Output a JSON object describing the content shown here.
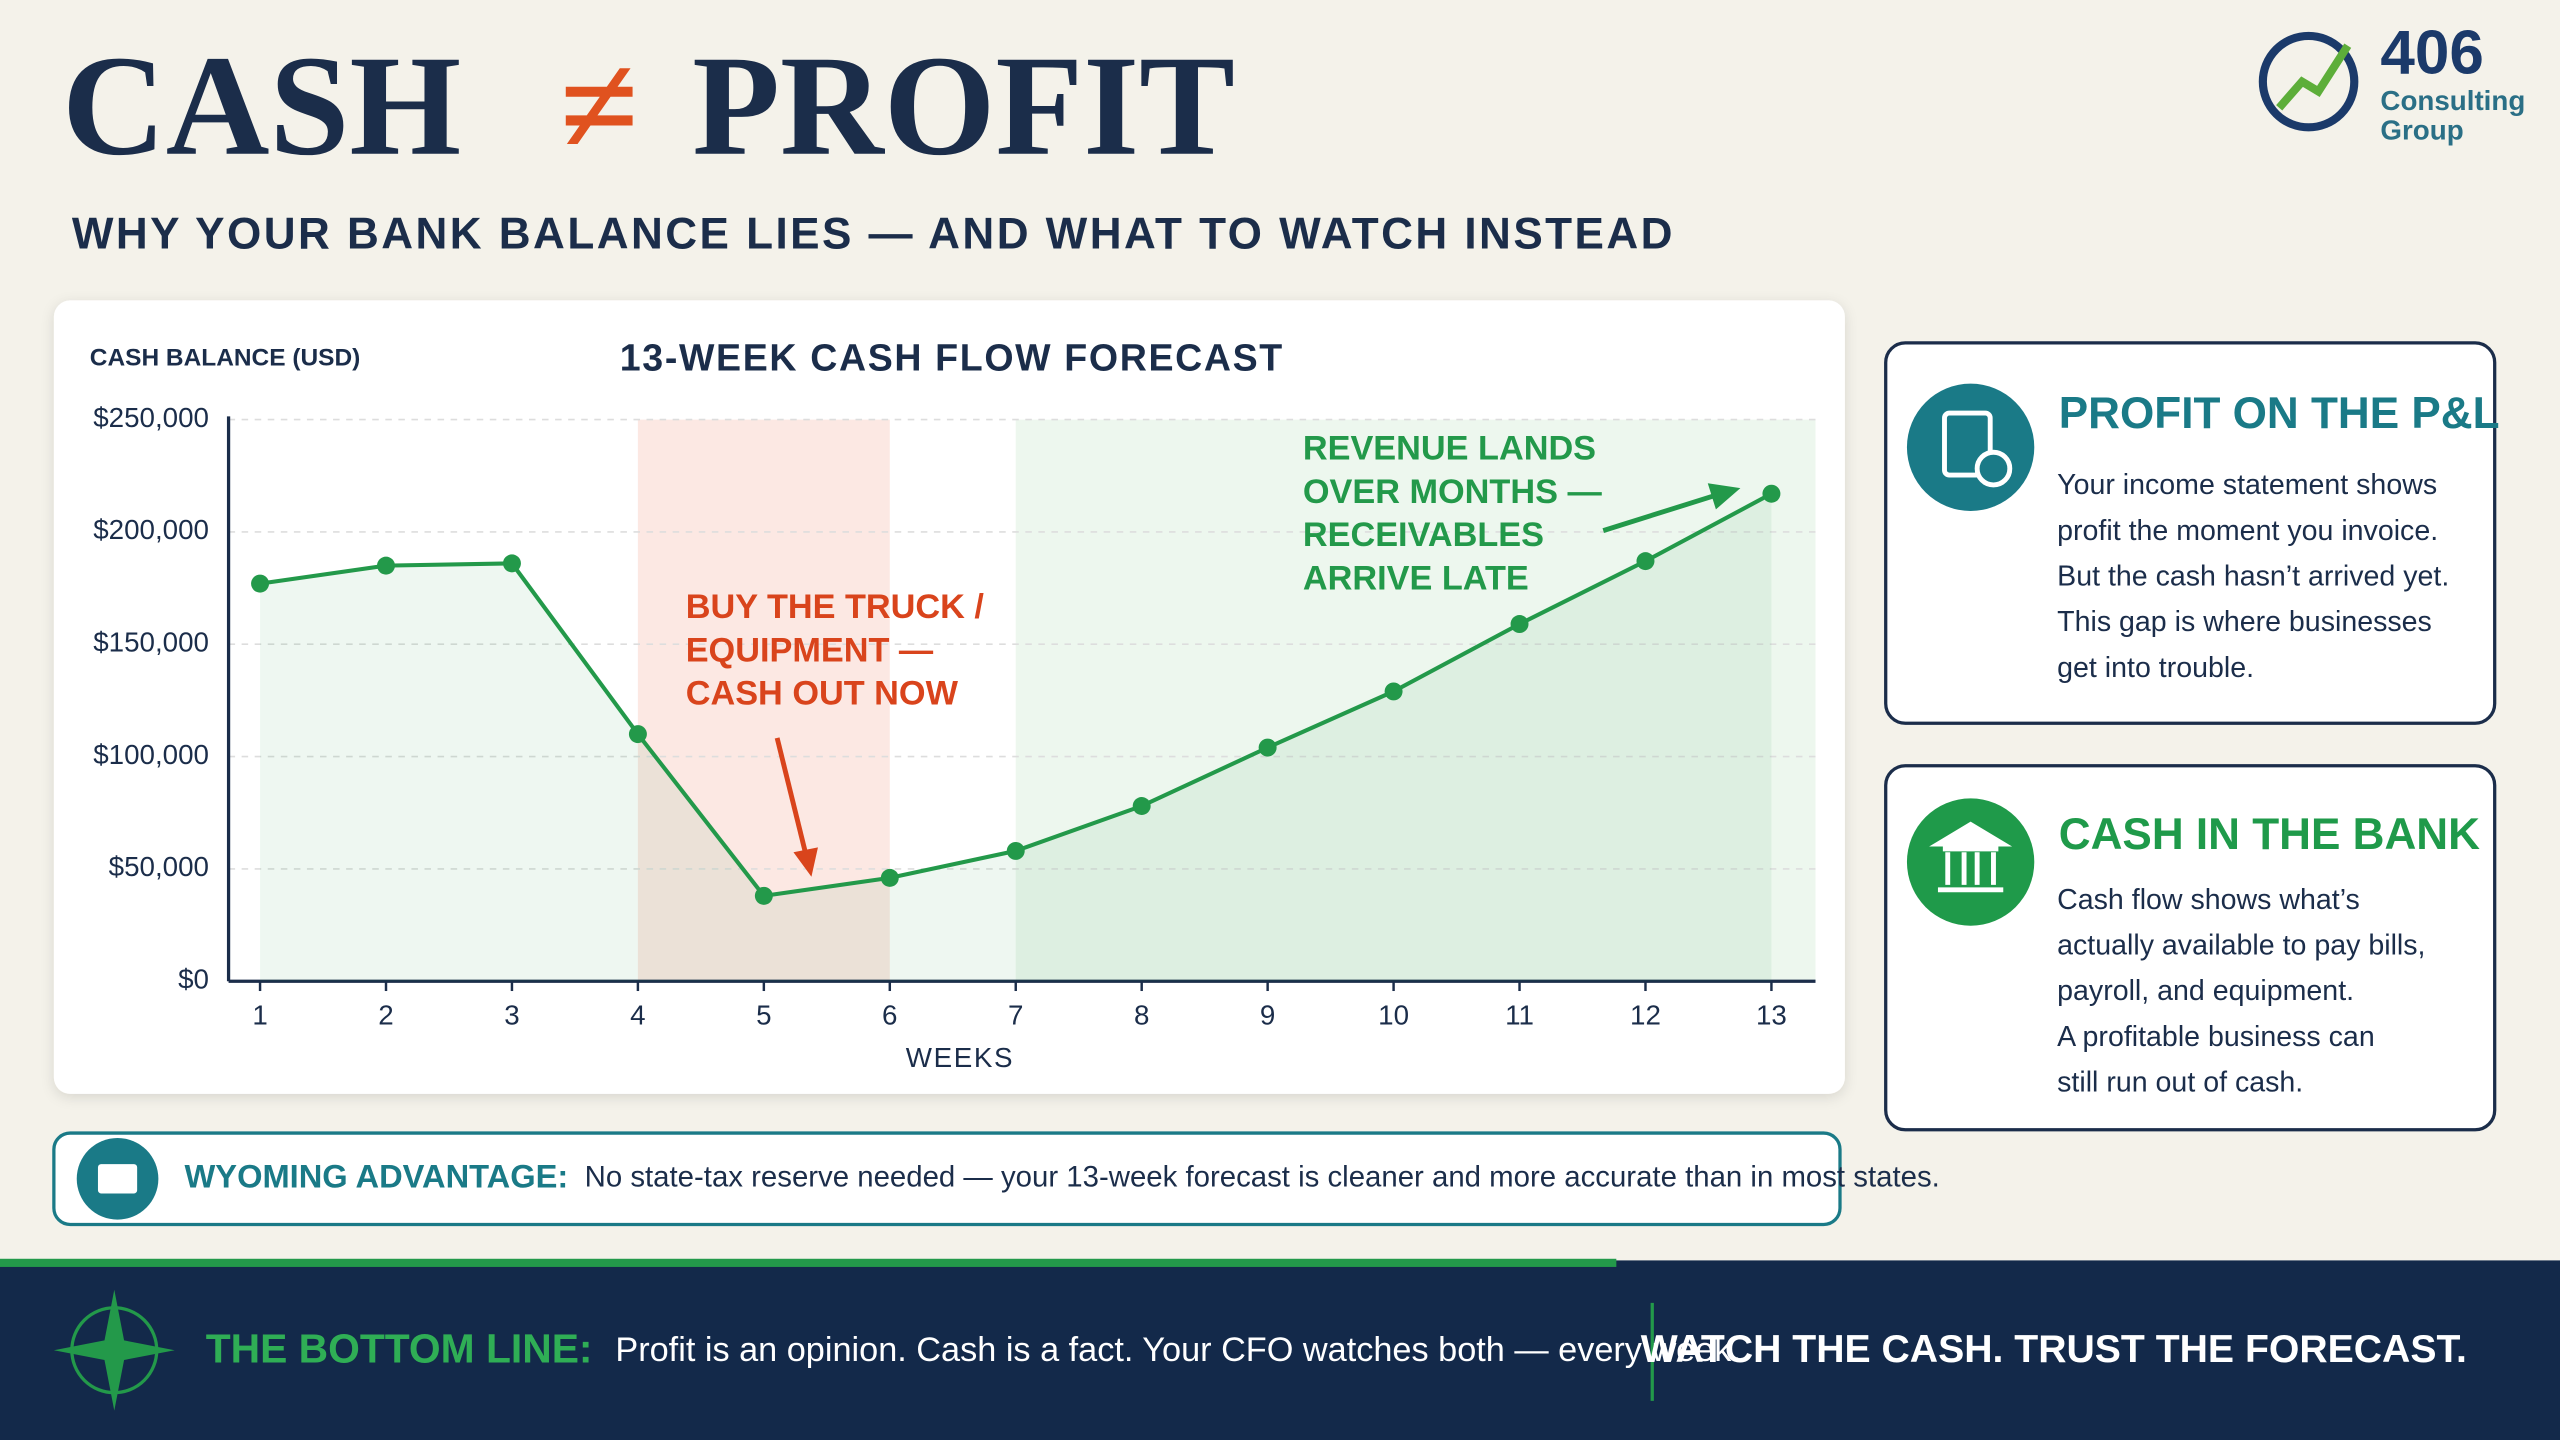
{
  "header": {
    "title_left": "CASH",
    "title_sign": "≠",
    "title_right": "PROFIT",
    "subtitle": "WHY YOUR BANK BALANCE LIES — AND WHAT TO WATCH INSTEAD"
  },
  "logo": {
    "number": "406",
    "line1": "Consulting",
    "line2": "Group"
  },
  "chart_data": {
    "type": "line",
    "title": "13-WEEK CASH FLOW FORECAST",
    "y_label": "CASH BALANCE (USD)",
    "x_label": "WEEKS",
    "x": [
      1,
      2,
      3,
      4,
      5,
      6,
      7,
      8,
      9,
      10,
      11,
      12,
      13
    ],
    "values": [
      177000,
      185000,
      186000,
      110000,
      38000,
      46000,
      58000,
      78000,
      104000,
      129000,
      159000,
      187000,
      217000
    ],
    "color": "#23994a",
    "xlim": [
      0.75,
      13.35
    ],
    "ylim": [
      0,
      250000
    ],
    "xticks": [
      1,
      2,
      3,
      4,
      5,
      6,
      7,
      8,
      9,
      10,
      11,
      12,
      13
    ],
    "yticks": [
      {
        "value": 0,
        "label": "$0"
      },
      {
        "value": 50000,
        "label": "$50,000"
      },
      {
        "value": 100000,
        "label": "$100,000"
      },
      {
        "value": 150000,
        "label": "$150,000"
      },
      {
        "value": 200000,
        "label": "$200,000"
      },
      {
        "value": 250000,
        "label": "$250,000"
      }
    ],
    "grid": true,
    "spans": [
      {
        "x": [
          4,
          6
        ],
        "color": "#fbe2dc"
      },
      {
        "x": [
          7,
          13.35
        ],
        "color": "#e9f5ea"
      }
    ],
    "annotations": [
      {
        "lines": [
          "BUY THE TRUCK /",
          "EQUIPMENT —",
          "CASH OUT NOW"
        ],
        "color": "#d9441c"
      },
      {
        "lines": [
          "REVENUE LANDS",
          "OVER MONTHS —",
          "RECEIVABLES",
          "ARRIVE LATE"
        ],
        "color": "#23994a"
      }
    ]
  },
  "cards": [
    {
      "title": "PROFIT ON THE P&L",
      "lines": [
        "Your income statement shows",
        "profit the moment you invoice.",
        "But the cash hasn’t arrived yet.",
        "This gap is where businesses",
        "get into trouble."
      ]
    },
    {
      "title": "CASH IN THE BANK",
      "lines": [
        "Cash flow shows what’s",
        "actually available to pay bills,",
        "payroll, and equipment.",
        "A profitable business can",
        "still run out of cash."
      ]
    }
  ],
  "wyoming": {
    "label": "WYOMING ADVANTAGE:",
    "text": "No state-tax reserve needed — your 13-week forecast is cleaner and more accurate than in most states."
  },
  "footer": {
    "label": "THE BOTTOM LINE:",
    "text": "Profit is an opinion. Cash is a fact. Your CFO watches both — every week.",
    "tagline": "WATCH THE CASH. TRUST THE FORECAST."
  }
}
